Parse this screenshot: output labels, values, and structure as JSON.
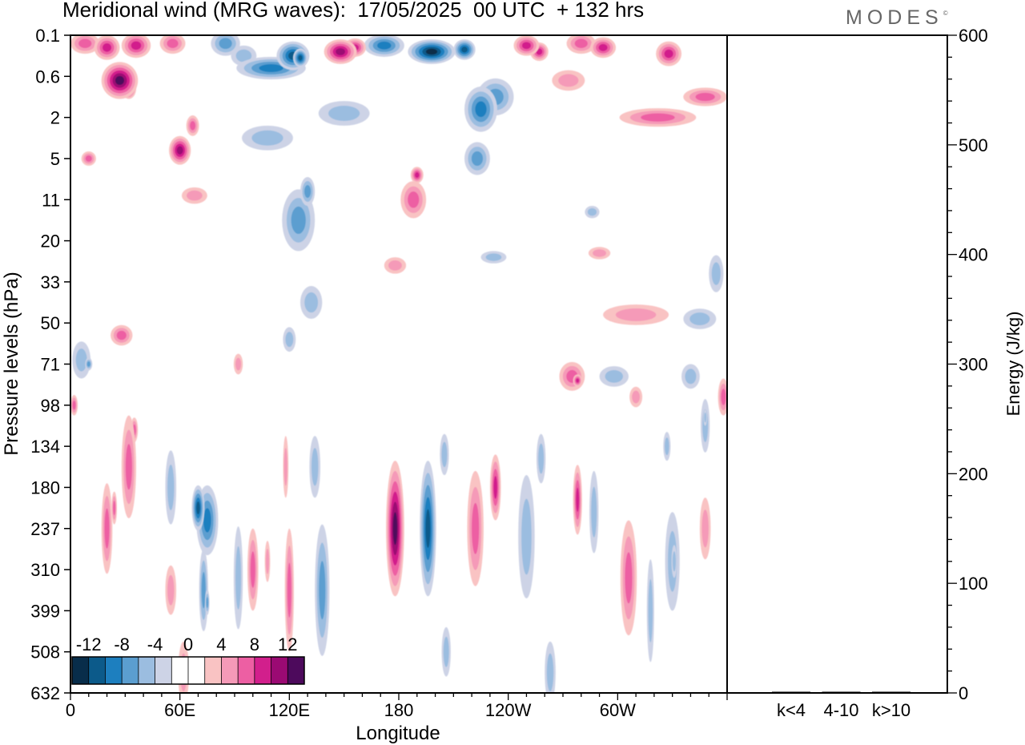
{
  "header": {
    "title": "Meridional wind (MRG waves):  17/05/2025  00 UTC  + 132 hrs",
    "logo_text": "MODES"
  },
  "chart_data": [
    {
      "type": "heatmap",
      "xlabel": "Longitude",
      "ylabel": "Pressure levels (hPa)",
      "x_ticks": [
        "0",
        "60E",
        "120E",
        "180",
        "120W",
        "60W"
      ],
      "x_tick_degrees": [
        0,
        60,
        120,
        180,
        240,
        300
      ],
      "xlim": [
        0,
        360
      ],
      "y_ticks": [
        "0.1",
        "0.6",
        "2",
        "5",
        "11",
        "20",
        "33",
        "50",
        "71",
        "98",
        "134",
        "180",
        "237",
        "310",
        "399",
        "508",
        "632"
      ],
      "colorbar": {
        "labels": [
          "-12",
          "-8",
          "-4",
          "0",
          "4",
          "8",
          "12"
        ],
        "colors": [
          "#082d4a",
          "#0c5a8a",
          "#1d7fbf",
          "#5b9ed0",
          "#9bbde0",
          "#cdd3e6",
          "#ffffff",
          "#ffffff",
          "#f9c3c3",
          "#f59ab8",
          "#ed5fa3",
          "#d21f8c",
          "#9b0a73",
          "#4d0a5c"
        ]
      },
      "features": [
        {
          "sign": "pos",
          "lon": 8,
          "lev": 0.2,
          "w": 16,
          "h": 0.5,
          "a": 0.55
        },
        {
          "sign": "pos",
          "lon": 20,
          "lev": 0.3,
          "w": 14,
          "h": 0.6,
          "a": 0.85
        },
        {
          "sign": "pos",
          "lon": 36,
          "lev": 0.25,
          "w": 16,
          "h": 0.6,
          "a": 0.7
        },
        {
          "sign": "pos",
          "lon": 27,
          "lev": 1.1,
          "w": 20,
          "h": 0.9,
          "a": 1.15
        },
        {
          "sign": "pos",
          "lon": 32,
          "lev": 1.3,
          "w": 8,
          "h": 0.5,
          "a": 1.0
        },
        {
          "sign": "pos",
          "lon": 56,
          "lev": 0.2,
          "w": 14,
          "h": 0.5,
          "a": 0.5
        },
        {
          "sign": "neg",
          "lon": 85,
          "lev": 0.2,
          "w": 16,
          "h": 0.6,
          "a": 0.6
        },
        {
          "sign": "neg",
          "lon": 95,
          "lev": 0.5,
          "w": 14,
          "h": 0.5,
          "a": 0.45
        },
        {
          "sign": "neg",
          "lon": 110,
          "lev": 0.8,
          "w": 38,
          "h": 0.55,
          "a": 0.7
        },
        {
          "sign": "neg",
          "lon": 122,
          "lev": 0.5,
          "w": 18,
          "h": 0.7,
          "a": 1.0
        },
        {
          "sign": "neg",
          "lon": 126,
          "lev": 0.55,
          "w": 8,
          "h": 0.45,
          "a": 1.0
        },
        {
          "sign": "pos",
          "lon": 148,
          "lev": 0.4,
          "w": 18,
          "h": 0.6,
          "a": 0.95
        },
        {
          "sign": "pos",
          "lon": 156,
          "lev": 0.3,
          "w": 12,
          "h": 0.45,
          "a": 0.8
        },
        {
          "sign": "neg",
          "lon": 172,
          "lev": 0.25,
          "w": 22,
          "h": 0.55,
          "a": 0.7
        },
        {
          "sign": "neg",
          "lon": 198,
          "lev": 0.4,
          "w": 26,
          "h": 0.6,
          "a": 1.1
        },
        {
          "sign": "neg",
          "lon": 216,
          "lev": 0.35,
          "w": 12,
          "h": 0.5,
          "a": 0.9
        },
        {
          "sign": "pos",
          "lon": 250,
          "lev": 0.25,
          "w": 14,
          "h": 0.5,
          "a": 0.85
        },
        {
          "sign": "pos",
          "lon": 257,
          "lev": 0.4,
          "w": 10,
          "h": 0.45,
          "a": 0.7
        },
        {
          "sign": "pos",
          "lon": 280,
          "lev": 0.2,
          "w": 16,
          "h": 0.5,
          "a": 0.55
        },
        {
          "sign": "pos",
          "lon": 292,
          "lev": 0.3,
          "w": 14,
          "h": 0.5,
          "a": 0.7
        },
        {
          "sign": "pos",
          "lon": 273,
          "lev": 1.1,
          "w": 18,
          "h": 0.5,
          "a": 0.45
        },
        {
          "sign": "pos",
          "lon": 328,
          "lev": 0.45,
          "w": 14,
          "h": 0.6,
          "a": 0.75
        },
        {
          "sign": "pos",
          "lon": 348,
          "lev": 1.5,
          "w": 24,
          "h": 0.45,
          "a": 0.5
        },
        {
          "sign": "pos",
          "lon": 322,
          "lev": 2.0,
          "w": 42,
          "h": 0.45,
          "a": 0.5
        },
        {
          "sign": "neg",
          "lon": 108,
          "lev": 2.5,
          "w": 28,
          "h": 0.6,
          "a": 0.35
        },
        {
          "sign": "neg",
          "lon": 150,
          "lev": 1.9,
          "w": 28,
          "h": 0.6,
          "a": 0.35
        },
        {
          "sign": "neg",
          "lon": 225,
          "lev": 1.8,
          "w": 18,
          "h": 1.1,
          "a": 0.7
        },
        {
          "sign": "neg",
          "lon": 233,
          "lev": 1.5,
          "w": 20,
          "h": 0.9,
          "a": 0.55
        },
        {
          "sign": "neg",
          "lon": 223,
          "lev": 3.0,
          "w": 14,
          "h": 0.8,
          "a": 0.5
        },
        {
          "sign": "pos",
          "lon": 10,
          "lev": 3.0,
          "w": 8,
          "h": 0.35,
          "a": 0.55
        },
        {
          "sign": "pos",
          "lon": 60,
          "lev": 2.8,
          "w": 12,
          "h": 0.7,
          "a": 0.9
        },
        {
          "sign": "pos",
          "lon": 67,
          "lev": 2.2,
          "w": 7,
          "h": 0.5,
          "a": 0.5
        },
        {
          "sign": "neg",
          "lon": 125,
          "lev": 4.5,
          "w": 18,
          "h": 1.5,
          "a": 0.55
        },
        {
          "sign": "neg",
          "lon": 130,
          "lev": 3.8,
          "w": 8,
          "h": 0.7,
          "a": 0.6
        },
        {
          "sign": "neg",
          "lon": 132,
          "lev": 6.5,
          "w": 12,
          "h": 0.8,
          "a": 0.35
        },
        {
          "sign": "pos",
          "lon": 188,
          "lev": 4.0,
          "w": 14,
          "h": 0.9,
          "a": 0.6
        },
        {
          "sign": "pos",
          "lon": 190,
          "lev": 3.4,
          "w": 7,
          "h": 0.4,
          "a": 0.8
        },
        {
          "sign": "pos",
          "lon": 68,
          "lev": 3.9,
          "w": 14,
          "h": 0.4,
          "a": 0.45
        },
        {
          "sign": "neg",
          "lon": 286,
          "lev": 4.3,
          "w": 8,
          "h": 0.3,
          "a": 0.35
        },
        {
          "sign": "pos",
          "lon": 178,
          "lev": 5.6,
          "w": 12,
          "h": 0.4,
          "a": 0.45
        },
        {
          "sign": "neg",
          "lon": 232,
          "lev": 5.4,
          "w": 14,
          "h": 0.3,
          "a": 0.35
        },
        {
          "sign": "pos",
          "lon": 290,
          "lev": 5.3,
          "w": 12,
          "h": 0.3,
          "a": 0.4
        },
        {
          "sign": "pos",
          "lon": 310,
          "lev": 6.8,
          "w": 36,
          "h": 0.5,
          "a": 0.45
        },
        {
          "sign": "neg",
          "lon": 345,
          "lev": 6.9,
          "w": 18,
          "h": 0.5,
          "a": 0.4
        },
        {
          "sign": "neg",
          "lon": 354,
          "lev": 5.8,
          "w": 8,
          "h": 0.9,
          "a": 0.35
        },
        {
          "sign": "pos",
          "lon": 28,
          "lev": 7.3,
          "w": 12,
          "h": 0.5,
          "a": 0.55
        },
        {
          "sign": "neg",
          "lon": 6,
          "lev": 7.9,
          "w": 10,
          "h": 0.9,
          "a": 0.45
        },
        {
          "sign": "neg",
          "lon": 10,
          "lev": 8.0,
          "w": 4,
          "h": 0.3,
          "a": 0.6
        },
        {
          "sign": "pos",
          "lon": 92,
          "lev": 8.0,
          "w": 5,
          "h": 0.5,
          "a": 0.35
        },
        {
          "sign": "neg",
          "lon": 120,
          "lev": 7.4,
          "w": 7,
          "h": 0.6,
          "a": 0.35
        },
        {
          "sign": "pos",
          "lon": 275,
          "lev": 8.3,
          "w": 14,
          "h": 0.7,
          "a": 0.6
        },
        {
          "sign": "pos",
          "lon": 278,
          "lev": 8.4,
          "w": 5,
          "h": 0.3,
          "a": 0.8
        },
        {
          "sign": "neg",
          "lon": 298,
          "lev": 8.3,
          "w": 16,
          "h": 0.5,
          "a": 0.35
        },
        {
          "sign": "pos",
          "lon": 310,
          "lev": 8.8,
          "w": 7,
          "h": 0.5,
          "a": 0.45
        },
        {
          "sign": "neg",
          "lon": 340,
          "lev": 8.3,
          "w": 10,
          "h": 0.6,
          "a": 0.35
        },
        {
          "sign": "pos",
          "lon": 358,
          "lev": 8.8,
          "w": 6,
          "h": 0.9,
          "a": 0.55
        },
        {
          "sign": "pos",
          "lon": 2,
          "lev": 9.0,
          "w": 4,
          "h": 0.5,
          "a": 0.5
        },
        {
          "sign": "pos",
          "lon": 32,
          "lev": 10.5,
          "w": 8,
          "h": 2.5,
          "a": 0.65
        },
        {
          "sign": "pos",
          "lon": 35,
          "lev": 9.6,
          "w": 4,
          "h": 0.6,
          "a": 0.6
        },
        {
          "sign": "pos",
          "lon": 20,
          "lev": 12.0,
          "w": 6,
          "h": 2.2,
          "a": 0.5
        },
        {
          "sign": "pos",
          "lon": 24,
          "lev": 11.5,
          "w": 3,
          "h": 0.8,
          "a": 0.5
        },
        {
          "sign": "neg",
          "lon": 55,
          "lev": 11.0,
          "w": 6,
          "h": 1.8,
          "a": 0.35
        },
        {
          "sign": "neg",
          "lon": 75,
          "lev": 11.8,
          "w": 12,
          "h": 1.7,
          "a": 0.8
        },
        {
          "sign": "neg",
          "lon": 70,
          "lev": 11.5,
          "w": 7,
          "h": 1.1,
          "a": 0.9
        },
        {
          "sign": "neg",
          "lon": 73,
          "lev": 13.5,
          "w": 5,
          "h": 2.0,
          "a": 0.55
        },
        {
          "sign": "neg",
          "lon": 75,
          "lev": 13.8,
          "w": 2.5,
          "h": 0.6,
          "a": 0.65
        },
        {
          "sign": "pos",
          "lon": 55,
          "lev": 13.5,
          "w": 6,
          "h": 1.2,
          "a": 0.4
        },
        {
          "sign": "pos",
          "lon": 62,
          "lev": 15.5,
          "w": 6,
          "h": 1.5,
          "a": 0.35
        },
        {
          "sign": "neg",
          "lon": 92,
          "lev": 13.2,
          "w": 5,
          "h": 2.5,
          "a": 0.35
        },
        {
          "sign": "pos",
          "lon": 100,
          "lev": 13.0,
          "w": 6,
          "h": 2.0,
          "a": 0.5
        },
        {
          "sign": "pos",
          "lon": 108,
          "lev": 12.8,
          "w": 3,
          "h": 1.0,
          "a": 0.45
        },
        {
          "sign": "pos",
          "lon": 120,
          "lev": 13.5,
          "w": 5,
          "h": 3.0,
          "a": 0.55
        },
        {
          "sign": "pos",
          "lon": 118,
          "lev": 10.5,
          "w": 3,
          "h": 1.5,
          "a": 0.35
        },
        {
          "sign": "neg",
          "lon": 138,
          "lev": 13.5,
          "w": 8,
          "h": 3.2,
          "a": 0.65
        },
        {
          "sign": "neg",
          "lon": 134,
          "lev": 10.5,
          "w": 6,
          "h": 1.5,
          "a": 0.35
        },
        {
          "sign": "pos",
          "lon": 178,
          "lev": 12.0,
          "w": 10,
          "h": 3.3,
          "a": 1.1
        },
        {
          "sign": "pos",
          "lon": 179,
          "lev": 11.5,
          "w": 4,
          "h": 1.4,
          "a": 0.65
        },
        {
          "sign": "pos",
          "lon": 179,
          "lev": 12.5,
          "w": 3,
          "h": 1.2,
          "a": 0.6
        },
        {
          "sign": "neg",
          "lon": 196,
          "lev": 12.0,
          "w": 9,
          "h": 3.3,
          "a": 0.9
        },
        {
          "sign": "neg",
          "lon": 195,
          "lev": 11.5,
          "w": 3,
          "h": 1.4,
          "a": 0.55
        },
        {
          "sign": "neg",
          "lon": 205,
          "lev": 10.2,
          "w": 5,
          "h": 1.0,
          "a": 0.3
        },
        {
          "sign": "pos",
          "lon": 222,
          "lev": 12.0,
          "w": 9,
          "h": 2.8,
          "a": 0.55
        },
        {
          "sign": "pos",
          "lon": 233,
          "lev": 11.0,
          "w": 6,
          "h": 1.6,
          "a": 0.7
        },
        {
          "sign": "pos",
          "lon": 233,
          "lev": 10.6,
          "w": 2,
          "h": 0.5,
          "a": 0.35
        },
        {
          "sign": "neg",
          "lon": 250,
          "lev": 12.2,
          "w": 9,
          "h": 3.0,
          "a": 0.4
        },
        {
          "sign": "neg",
          "lon": 258,
          "lev": 10.3,
          "w": 5,
          "h": 1.2,
          "a": 0.4
        },
        {
          "sign": "pos",
          "lon": 278,
          "lev": 11.3,
          "w": 5,
          "h": 1.7,
          "a": 0.7
        },
        {
          "sign": "pos",
          "lon": 279,
          "lev": 11.4,
          "w": 2,
          "h": 0.8,
          "a": 0.45
        },
        {
          "sign": "neg",
          "lon": 287,
          "lev": 11.6,
          "w": 5,
          "h": 2.0,
          "a": 0.35
        },
        {
          "sign": "pos",
          "lon": 306,
          "lev": 13.2,
          "w": 9,
          "h": 2.8,
          "a": 0.55
        },
        {
          "sign": "pos",
          "lon": 308,
          "lev": 12.6,
          "w": 3,
          "h": 0.8,
          "a": 0.3
        },
        {
          "sign": "neg",
          "lon": 318,
          "lev": 14.0,
          "w": 4,
          "h": 2.5,
          "a": 0.35
        },
        {
          "sign": "neg",
          "lon": 330,
          "lev": 12.8,
          "w": 8,
          "h": 2.4,
          "a": 0.45
        },
        {
          "sign": "neg",
          "lon": 331,
          "lev": 12.8,
          "w": 3,
          "h": 0.8,
          "a": 0.45
        },
        {
          "sign": "neg",
          "lon": 327,
          "lev": 10.0,
          "w": 4,
          "h": 0.7,
          "a": 0.45
        },
        {
          "sign": "neg",
          "lon": 348,
          "lev": 9.5,
          "w": 5,
          "h": 1.3,
          "a": 0.45
        },
        {
          "sign": "neg",
          "lon": 348,
          "lev": 9.3,
          "w": 2,
          "h": 0.4,
          "a": 0.45
        },
        {
          "sign": "pos",
          "lon": 348,
          "lev": 12.0,
          "w": 6,
          "h": 1.5,
          "a": 0.4
        },
        {
          "sign": "neg",
          "lon": 206,
          "lev": 15.0,
          "w": 5,
          "h": 1.2,
          "a": 0.3
        },
        {
          "sign": "neg",
          "lon": 263,
          "lev": 15.5,
          "w": 6,
          "h": 1.5,
          "a": 0.3
        }
      ]
    },
    {
      "type": "bar",
      "ylabel": "Energy (J/kg)",
      "ylim": [
        0,
        600
      ],
      "y_ticks": [
        "0",
        "100",
        "200",
        "300",
        "400",
        "500",
        "600"
      ],
      "categories": [
        "k<4",
        "4-10",
        "k>10"
      ],
      "values": [
        0,
        1,
        0
      ]
    }
  ]
}
